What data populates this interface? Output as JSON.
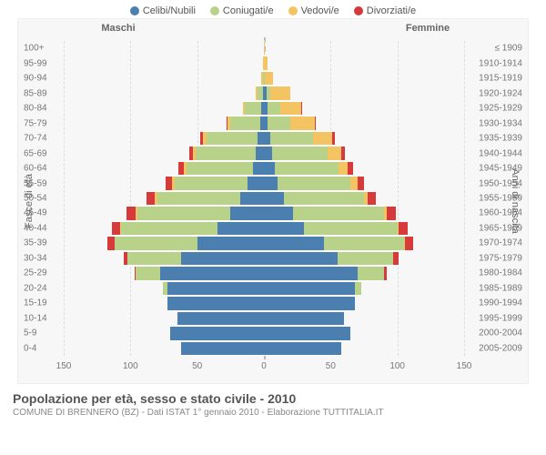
{
  "legend": {
    "items": [
      {
        "label": "Celibi/Nubili",
        "color": "#4a7fb0"
      },
      {
        "label": "Coniugati/e",
        "color": "#b8d28a"
      },
      {
        "label": "Vedovi/e",
        "color": "#f4c362"
      },
      {
        "label": "Divorziati/e",
        "color": "#d73a3a"
      }
    ]
  },
  "headers": {
    "male": "Maschi",
    "female": "Femmine"
  },
  "axes": {
    "y_left_label": "Fasce di età",
    "y_right_label": "Anni di nascita",
    "x_ticks": [
      150,
      100,
      50,
      0,
      50,
      100,
      150
    ],
    "x_max": 150
  },
  "colors": {
    "celibi": "#4a7fb0",
    "coniugati": "#b8d28a",
    "vedovi": "#f4c362",
    "divorziati": "#d73a3a",
    "grid": "#dddddd",
    "center": "#bbbbbb",
    "bg": "#f7f7f7"
  },
  "rows": [
    {
      "age": "100+",
      "birth": "≤ 1909",
      "m": [
        0,
        0,
        0,
        0
      ],
      "f": [
        0,
        0,
        1,
        0
      ]
    },
    {
      "age": "95-99",
      "birth": "1910-1914",
      "m": [
        0,
        0,
        1,
        0
      ],
      "f": [
        0,
        0,
        3,
        0
      ]
    },
    {
      "age": "90-94",
      "birth": "1915-1919",
      "m": [
        0,
        1,
        1,
        0
      ],
      "f": [
        0,
        1,
        6,
        0
      ]
    },
    {
      "age": "85-89",
      "birth": "1920-1924",
      "m": [
        1,
        4,
        1,
        0
      ],
      "f": [
        2,
        3,
        15,
        0
      ]
    },
    {
      "age": "80-84",
      "birth": "1925-1929",
      "m": [
        2,
        12,
        2,
        0
      ],
      "f": [
        3,
        9,
        16,
        1
      ]
    },
    {
      "age": "75-79",
      "birth": "1930-1934",
      "m": [
        3,
        22,
        2,
        1
      ],
      "f": [
        3,
        17,
        18,
        1
      ]
    },
    {
      "age": "70-74",
      "birth": "1935-1939",
      "m": [
        5,
        38,
        3,
        2
      ],
      "f": [
        5,
        32,
        14,
        2
      ]
    },
    {
      "age": "65-69",
      "birth": "1940-1944",
      "m": [
        6,
        45,
        2,
        3
      ],
      "f": [
        6,
        42,
        10,
        3
      ]
    },
    {
      "age": "60-64",
      "birth": "1945-1949",
      "m": [
        8,
        50,
        2,
        4
      ],
      "f": [
        8,
        48,
        7,
        4
      ]
    },
    {
      "age": "55-59",
      "birth": "1950-1954",
      "m": [
        12,
        55,
        2,
        5
      ],
      "f": [
        10,
        55,
        5,
        5
      ]
    },
    {
      "age": "50-54",
      "birth": "1955-1959",
      "m": [
        18,
        62,
        2,
        6
      ],
      "f": [
        15,
        60,
        3,
        6
      ]
    },
    {
      "age": "45-49",
      "birth": "1960-1964",
      "m": [
        25,
        70,
        1,
        7
      ],
      "f": [
        22,
        68,
        2,
        7
      ]
    },
    {
      "age": "40-44",
      "birth": "1965-1969",
      "m": [
        35,
        72,
        1,
        6
      ],
      "f": [
        30,
        70,
        1,
        7
      ]
    },
    {
      "age": "35-39",
      "birth": "1970-1974",
      "m": [
        50,
        62,
        0,
        5
      ],
      "f": [
        45,
        60,
        1,
        6
      ]
    },
    {
      "age": "30-34",
      "birth": "1975-1979",
      "m": [
        62,
        40,
        0,
        3
      ],
      "f": [
        55,
        42,
        0,
        4
      ]
    },
    {
      "age": "25-29",
      "birth": "1980-1984",
      "m": [
        78,
        18,
        0,
        1
      ],
      "f": [
        70,
        20,
        0,
        2
      ]
    },
    {
      "age": "20-24",
      "birth": "1985-1989",
      "m": [
        72,
        4,
        0,
        0
      ],
      "f": [
        68,
        5,
        0,
        0
      ]
    },
    {
      "age": "15-19",
      "birth": "1990-1994",
      "m": [
        72,
        0,
        0,
        0
      ],
      "f": [
        68,
        0,
        0,
        0
      ]
    },
    {
      "age": "10-14",
      "birth": "1995-1999",
      "m": [
        65,
        0,
        0,
        0
      ],
      "f": [
        60,
        0,
        0,
        0
      ]
    },
    {
      "age": "5-9",
      "birth": "2000-2004",
      "m": [
        70,
        0,
        0,
        0
      ],
      "f": [
        65,
        0,
        0,
        0
      ]
    },
    {
      "age": "0-4",
      "birth": "2005-2009",
      "m": [
        62,
        0,
        0,
        0
      ],
      "f": [
        58,
        0,
        0,
        0
      ]
    }
  ],
  "footer": {
    "title": "Popolazione per età, sesso e stato civile - 2010",
    "subtitle": "COMUNE DI BRENNERO (BZ) - Dati ISTAT 1° gennaio 2010 - Elaborazione TUTTITALIA.IT"
  }
}
